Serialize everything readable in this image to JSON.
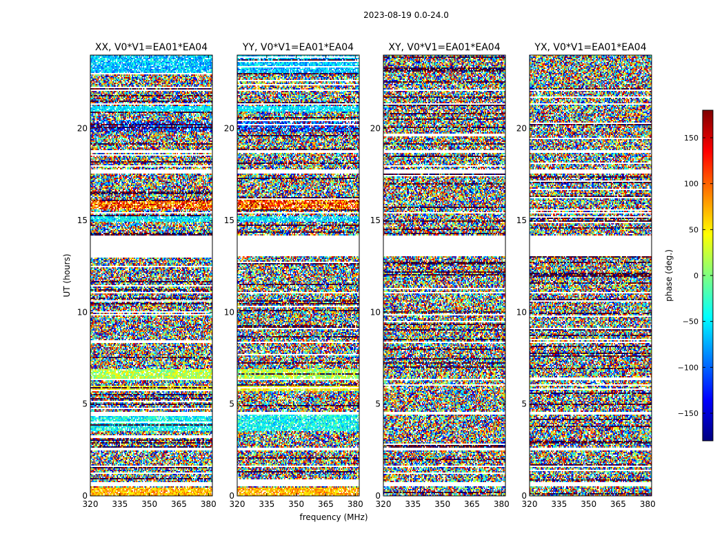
{
  "figure": {
    "suptitle": "2023-08-19 0.0-24.0"
  },
  "chart_data": {
    "type": "heatmap",
    "title": "2023-08-19 0.0-24.0",
    "xlabel": "frequency (MHz)",
    "ylabel": "UT (hours)",
    "xlim": [
      320,
      382
    ],
    "ylim": [
      0,
      24
    ],
    "x_ticks": [
      320,
      335,
      350,
      365,
      380
    ],
    "y_ticks": [
      0,
      5,
      10,
      15,
      20
    ],
    "colorbar": {
      "label": "phase (deg.)",
      "range": [
        -180,
        180
      ],
      "ticks": [
        -150,
        -100,
        -50,
        0,
        50,
        100,
        150
      ],
      "tick_labels": [
        "−150",
        "−100",
        "−50",
        "0",
        "50",
        "100",
        "150"
      ],
      "colormap": "jet",
      "colors": [
        "#00007f",
        "#0000ff",
        "#007fff",
        "#00ffff",
        "#7fff7f",
        "#ffff00",
        "#ff7f00",
        "#ff0000",
        "#7f0000"
      ]
    },
    "panels": [
      {
        "title": "XX, V0*V1=EA01*EA04",
        "polarization": "XX",
        "coherent_bands": true
      },
      {
        "title": "YY, V0*V1=EA01*EA04",
        "polarization": "YY",
        "coherent_bands": true
      },
      {
        "title": "XY, V0*V1=EA01*EA04",
        "polarization": "XY",
        "coherent_bands": false
      },
      {
        "title": "YX, V0*V1=EA01*EA04",
        "polarization": "YX",
        "coherent_bands": false
      }
    ],
    "flagged_time_ranges_hours": [
      [
        13.05,
        14.15
      ],
      [
        18.7,
        18.85
      ],
      [
        17.55,
        17.75
      ],
      [
        15.35,
        15.45
      ],
      [
        0.55,
        0.75
      ],
      [
        1.55,
        1.65
      ],
      [
        2.45,
        2.6
      ],
      [
        21.3,
        21.4
      ],
      [
        22.05,
        22.15
      ],
      [
        8.3,
        8.4
      ],
      [
        11.0,
        11.07
      ],
      [
        6.3,
        6.38
      ],
      [
        4.45,
        4.55
      ]
    ]
  }
}
